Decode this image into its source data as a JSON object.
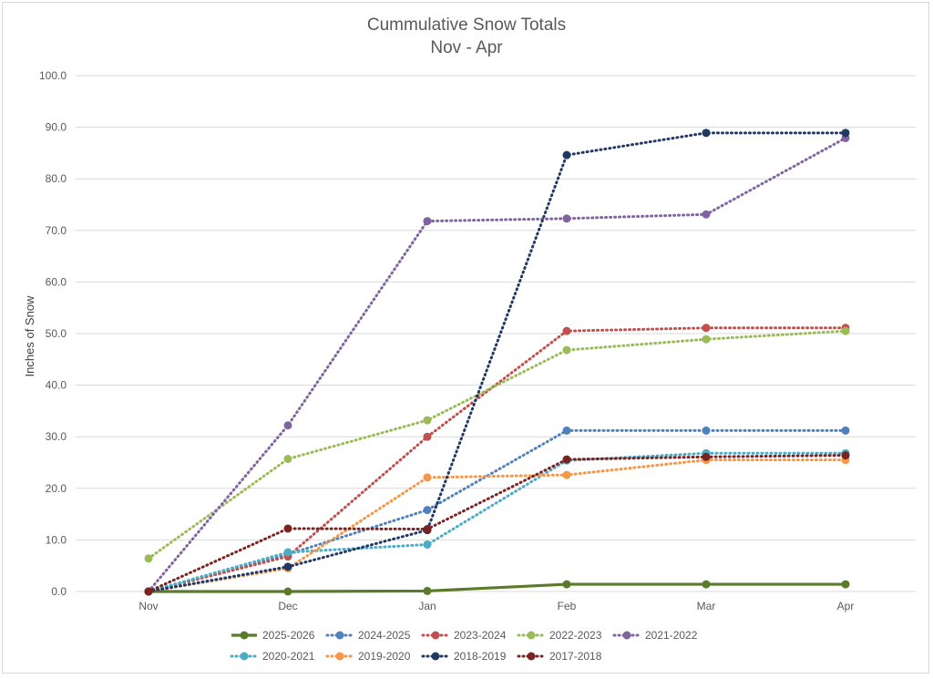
{
  "chart_data": {
    "type": "line",
    "title": "Cummulative Snow Totals",
    "subtitle": "Nov - Apr",
    "xlabel": "",
    "ylabel": "Inches of Snow",
    "categories": [
      "Nov",
      "Dec",
      "Jan",
      "Feb",
      "Mar",
      "Apr"
    ],
    "ylim": [
      0,
      100
    ],
    "y_ticks": [
      "0.0",
      "10.0",
      "20.0",
      "30.0",
      "40.0",
      "50.0",
      "60.0",
      "70.0",
      "80.0",
      "90.0",
      "100.0"
    ],
    "grid": true,
    "legend_position": "bottom",
    "series": [
      {
        "name": "2025-2026",
        "color": "#5b7a2c",
        "style": "solid",
        "values": [
          0,
          0,
          0.1,
          1.4,
          1.4,
          1.4
        ]
      },
      {
        "name": "2024-2025",
        "color": "#4f81bd",
        "style": "dotted",
        "values": [
          0,
          7.2,
          15.8,
          31.2,
          31.2,
          31.2
        ]
      },
      {
        "name": "2023-2024",
        "color": "#c0504d",
        "style": "dotted",
        "values": [
          0,
          6.8,
          30.0,
          50.5,
          51.1,
          51.1
        ]
      },
      {
        "name": "2022-2023",
        "color": "#9bbb59",
        "style": "dotted",
        "values": [
          6.4,
          25.7,
          33.2,
          46.8,
          48.9,
          50.5
        ]
      },
      {
        "name": "2021-2022",
        "color": "#8064a2",
        "style": "dotted",
        "values": [
          0,
          32.2,
          71.8,
          72.3,
          73.1,
          87.9
        ]
      },
      {
        "name": "2020-2021",
        "color": "#4bacc6",
        "style": "dotted",
        "values": [
          0,
          7.6,
          9.1,
          25.4,
          26.8,
          26.8
        ]
      },
      {
        "name": "2019-2020",
        "color": "#f79646",
        "style": "dotted",
        "values": [
          0,
          4.5,
          22.1,
          22.6,
          25.5,
          25.5
        ]
      },
      {
        "name": "2018-2019",
        "color": "#1f3864",
        "style": "dotted",
        "values": [
          0,
          4.8,
          11.9,
          84.6,
          88.9,
          88.9
        ]
      },
      {
        "name": "2017-2018",
        "color": "#7b2320",
        "style": "dotted",
        "values": [
          0,
          12.2,
          12.1,
          25.6,
          26.1,
          26.4
        ]
      }
    ]
  }
}
